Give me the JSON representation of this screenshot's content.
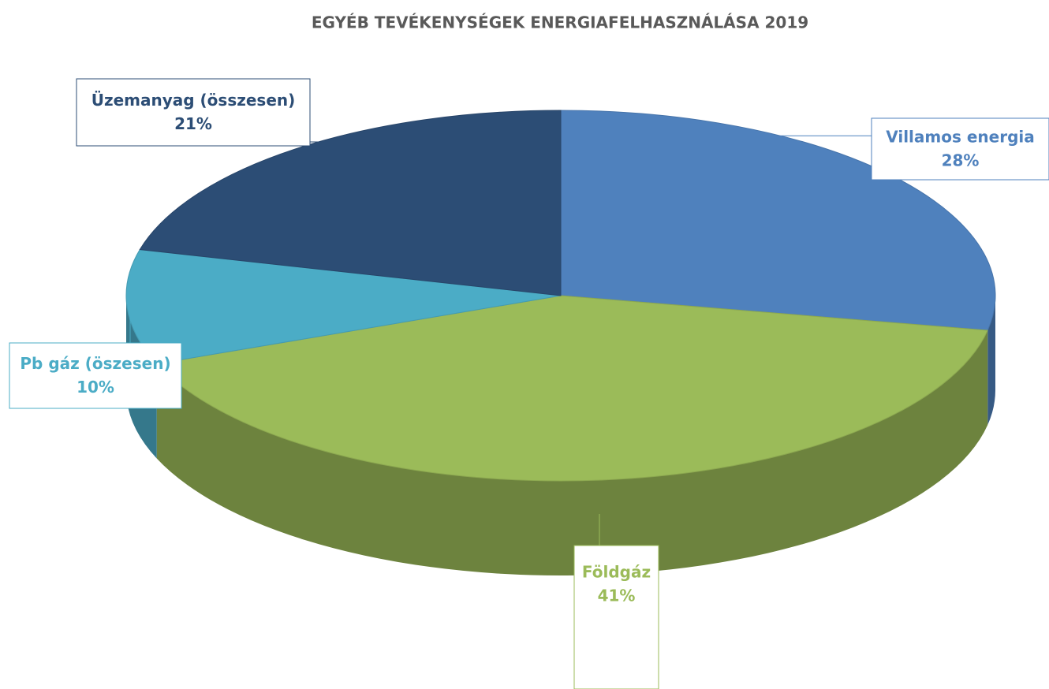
{
  "chart_data": {
    "type": "pie",
    "title": "EGYÉB TEVÉKENYSÉGEK ENERGIAFELHASZNÁLÁSA 2019",
    "categories": [
      "Villamos energia",
      "Földgáz",
      "Pb gáz (öszesen)",
      "Üzemanyag (összesen)"
    ],
    "values": [
      28,
      41,
      10,
      21
    ],
    "value_labels": [
      "28%",
      "41%",
      "10%",
      "21%"
    ],
    "colors": [
      "#4f81bd",
      "#9bbb59",
      "#4bacc6",
      "#2c4d75"
    ]
  }
}
